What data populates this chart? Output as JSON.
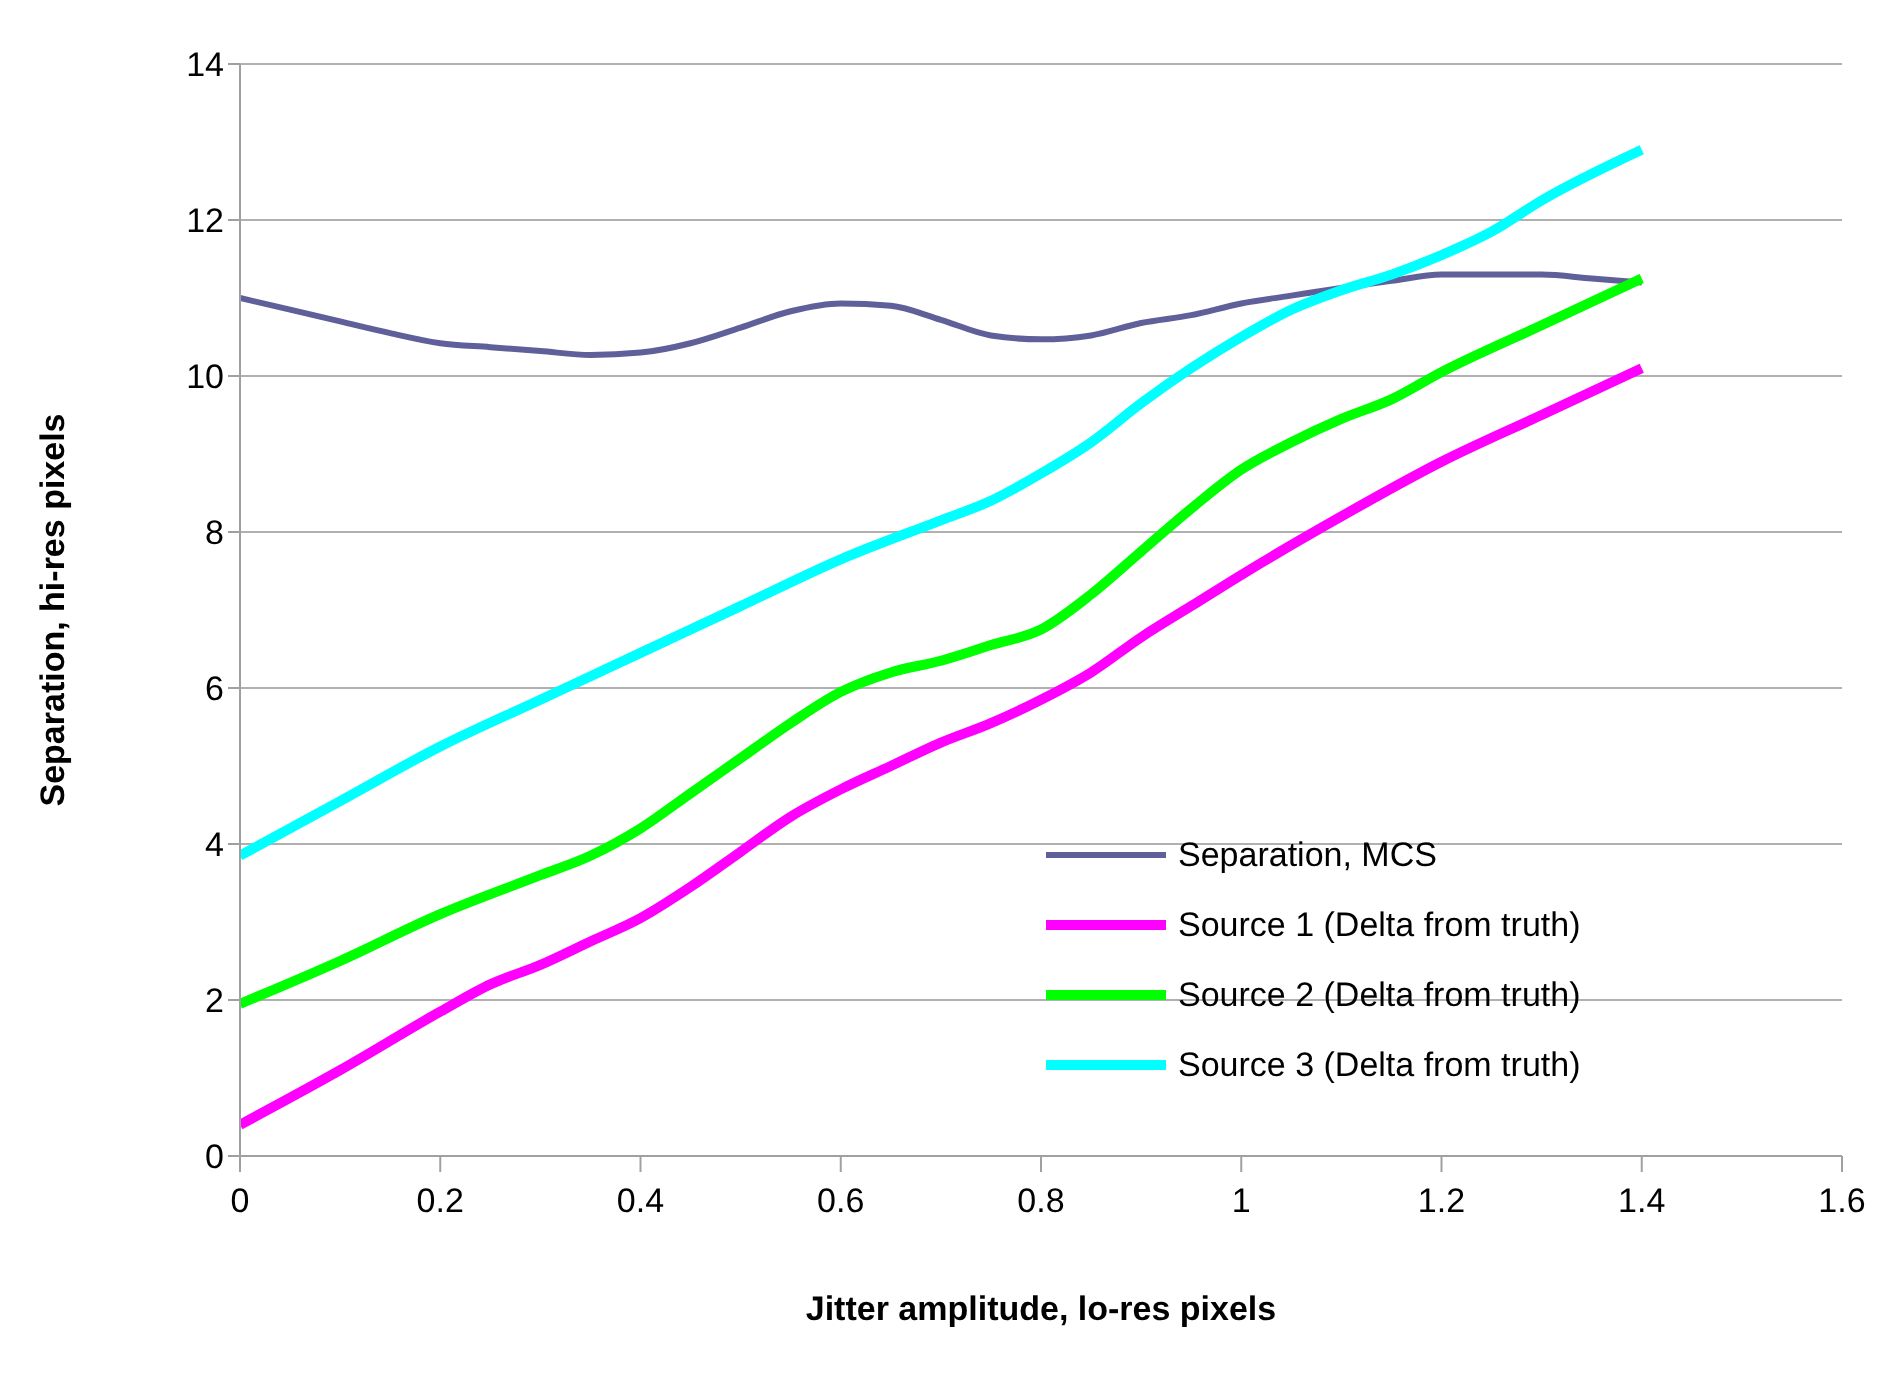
{
  "chart_data": {
    "type": "line",
    "xlabel": "Jitter amplitude, lo-res pixels",
    "ylabel": "Separation, hi-res pixels",
    "xlim": [
      0,
      1.6
    ],
    "xticks": [
      0,
      0.2,
      0.4,
      0.6,
      0.8,
      1,
      1.2,
      1.4,
      1.6
    ],
    "ylim": [
      0,
      14
    ],
    "yticks": [
      0,
      2,
      4,
      6,
      8,
      10,
      12,
      14
    ],
    "grid": "y",
    "legend": "bottom right",
    "marker": "none",
    "line_style": "solid",
    "series": [
      {
        "name": "Separation, MCS",
        "color": "#5f5f9a",
        "x": [
          0,
          0.05,
          0.1,
          0.15,
          0.2,
          0.25,
          0.3,
          0.35,
          0.4,
          0.45,
          0.5,
          0.55,
          0.6,
          0.65,
          0.7,
          0.75,
          0.8,
          0.85,
          0.9,
          0.95,
          1.0,
          1.05,
          1.1,
          1.15,
          1.2,
          1.25,
          1.3,
          1.35,
          1.4
        ],
        "values": [
          11.0,
          10.85,
          10.7,
          10.55,
          10.42,
          10.37,
          10.32,
          10.27,
          10.3,
          10.42,
          10.62,
          10.83,
          10.93,
          10.9,
          10.72,
          10.52,
          10.47,
          10.52,
          10.68,
          10.78,
          10.93,
          11.03,
          11.13,
          11.22,
          11.3,
          11.3,
          11.3,
          11.25,
          11.2
        ]
      },
      {
        "name": "Source 1 (Delta from truth)",
        "color": "#ff00ff",
        "x": [
          0,
          0.1,
          0.2,
          0.25,
          0.3,
          0.35,
          0.4,
          0.45,
          0.5,
          0.55,
          0.6,
          0.65,
          0.7,
          0.75,
          0.8,
          0.85,
          0.9,
          0.95,
          1.0,
          1.1,
          1.2,
          1.3,
          1.4
        ],
        "values": [
          0.4,
          1.1,
          1.85,
          2.2,
          2.45,
          2.75,
          3.05,
          3.45,
          3.9,
          4.35,
          4.7,
          5.0,
          5.3,
          5.55,
          5.85,
          6.2,
          6.65,
          7.05,
          7.45,
          8.2,
          8.9,
          9.5,
          10.1
        ]
      },
      {
        "name": "Source 2 (Delta from truth)",
        "color": "#00ff00",
        "x": [
          0,
          0.1,
          0.2,
          0.3,
          0.35,
          0.4,
          0.45,
          0.5,
          0.55,
          0.6,
          0.65,
          0.7,
          0.75,
          0.8,
          0.85,
          0.9,
          0.95,
          1.0,
          1.05,
          1.1,
          1.15,
          1.2,
          1.3,
          1.4
        ],
        "values": [
          1.95,
          2.5,
          3.1,
          3.6,
          3.85,
          4.2,
          4.65,
          5.1,
          5.55,
          5.95,
          6.2,
          6.35,
          6.55,
          6.75,
          7.2,
          7.75,
          8.3,
          8.8,
          9.15,
          9.45,
          9.7,
          10.05,
          10.65,
          11.25
        ]
      },
      {
        "name": "Source 3 (Delta from truth)",
        "color": "#00ffff",
        "x": [
          0,
          0.1,
          0.2,
          0.3,
          0.4,
          0.5,
          0.6,
          0.7,
          0.75,
          0.8,
          0.85,
          0.9,
          0.95,
          1.0,
          1.05,
          1.1,
          1.15,
          1.2,
          1.25,
          1.3,
          1.4
        ],
        "values": [
          3.85,
          4.55,
          5.25,
          5.85,
          6.45,
          7.05,
          7.65,
          8.15,
          8.4,
          8.75,
          9.15,
          9.65,
          10.1,
          10.5,
          10.85,
          11.1,
          11.3,
          11.55,
          11.85,
          12.25,
          12.9
        ]
      }
    ]
  }
}
